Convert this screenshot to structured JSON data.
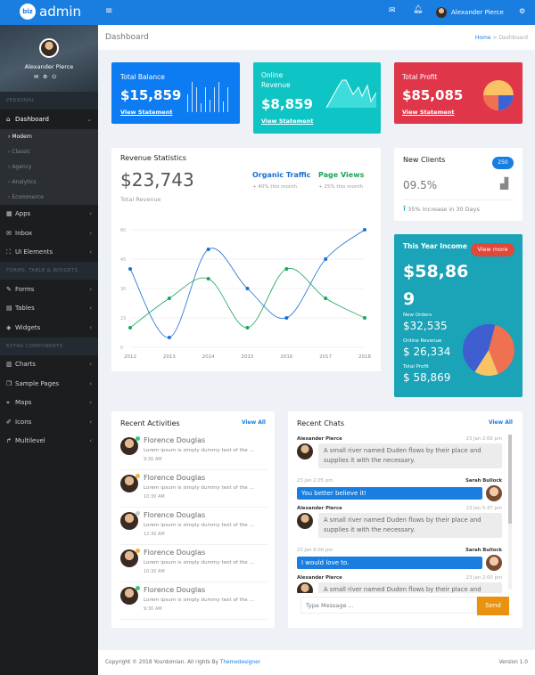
{
  "topbar": {
    "logo_badge": "biz",
    "logo_text": "admin",
    "menu_icon": "hamburger-icon",
    "user": "Alexander Pierce"
  },
  "sidebar": {
    "user": "Alexander Pierce",
    "sections": [
      "PERSONAL",
      "FORMS, TABLE & WIDGETS",
      "EXTRA COMPONENTS"
    ],
    "dashboard": "Dashboard",
    "sub": [
      "Modern",
      "Classic",
      "Agency",
      "Analytics",
      "Ecommerce"
    ],
    "items1": [
      "Apps",
      "Inbox",
      "UI Elements"
    ],
    "items2": [
      "Forms",
      "Tables",
      "Widgets"
    ],
    "items3": [
      "Charts",
      "Sample Pages",
      "Maps",
      "Icons",
      "Multilevel"
    ]
  },
  "page": {
    "title": "Dashboard",
    "crumb_home": "Home",
    "crumb_sep": ">",
    "crumb_current": "Dashboard"
  },
  "stats": [
    {
      "label": "Total Balance",
      "value": "$15,859",
      "link": "View Statement",
      "color": "#0d7cf2"
    },
    {
      "label": "Online Revenue",
      "value": "$8,859",
      "link": "View Statement",
      "color": "#0fc4c4"
    },
    {
      "label": "Total Profit",
      "value": "$85,085",
      "link": "View Statement",
      "color": "#e0364a"
    }
  ],
  "revenue": {
    "title": "Revenue Statistics",
    "total": "$23,743",
    "total_label": "Total Revenue",
    "legend": [
      {
        "name": "Organic Traffic",
        "note": "+ 40% this month",
        "color": "#1b6fd1"
      },
      {
        "name": "Page Views",
        "note": "+ 25% this month",
        "color": "#17a55a"
      }
    ]
  },
  "chart_data": {
    "type": "line",
    "categories": [
      "2012",
      "2013",
      "2014",
      "2015",
      "2016",
      "2017",
      "2018"
    ],
    "ylim": [
      0,
      60
    ],
    "yticks": [
      "0",
      "15",
      "30",
      "45",
      "60"
    ],
    "series": [
      {
        "name": "Organic Traffic",
        "values": [
          40,
          5,
          50,
          30,
          15,
          45,
          60
        ],
        "color": "#1b6fd1"
      },
      {
        "name": "Page Views",
        "values": [
          10,
          25,
          35,
          10,
          40,
          25,
          15
        ],
        "color": "#17a55a"
      }
    ],
    "grid": true,
    "smooth": true
  },
  "clients": {
    "title": "New Clients",
    "badge": "250",
    "percent": "09.5%",
    "note": "35% Increase in 30 Days"
  },
  "income": {
    "title": "This Year Income",
    "button": "View more",
    "value1": "$58,86",
    "value2": "9",
    "rows": [
      {
        "label": "New Orders",
        "value": "$32,535"
      },
      {
        "label": "Online Revenue",
        "value": "$ 26,334"
      },
      {
        "label": "Total Profit",
        "value": "$ 58,869"
      }
    ],
    "pie": [
      {
        "value": 40,
        "color": "#f07052"
      },
      {
        "value": 15,
        "color": "#f8c265"
      },
      {
        "value": 45,
        "color": "#3f5fd1"
      }
    ]
  },
  "activities": {
    "title": "Recent Activities",
    "view_all": "View All",
    "items": [
      {
        "name": "Florence Douglas",
        "text": "Lorem ipsum is simply dummy text of the ...",
        "time": "9:30 AM",
        "status": "#2ecc71"
      },
      {
        "name": "Florence Douglas",
        "text": "Lorem ipsum is simply dummy text of the ...",
        "time": "10:30 AM",
        "status": "#f5b32f"
      },
      {
        "name": "Florence Douglas",
        "text": "Lorem ipsum is simply dummy text of the ...",
        "time": "12:30 AM",
        "status": "#cccccc"
      },
      {
        "name": "Florence Douglas",
        "text": "Lorem ipsum is simply dummy text of the ...",
        "time": "10:30 AM",
        "status": "#f5b32f"
      },
      {
        "name": "Florence Douglas",
        "text": "Lorem ipsum is simply dummy text of the ...",
        "time": "9:30 AM",
        "status": "#2ecc71"
      }
    ]
  },
  "chats": {
    "title": "Recent Chats",
    "view_all": "View All",
    "placeholder": "Type Message ...",
    "send": "Send",
    "messages": [
      {
        "who": "Alexander Pierce",
        "when": "23 Jan 2:00 pm",
        "text": "A small river named Duden flows by their place and supplies it with the necessary.",
        "out": false
      },
      {
        "who": "Sarah Bullock",
        "when": "23 Jan 2:05 pm",
        "text": "You better believe it!",
        "out": true
      },
      {
        "who": "Alexander Pierce",
        "when": "23 Jan 5:37 pm",
        "text": "A small river named Duden flows by their place and supplies it with the necessary.",
        "out": false
      },
      {
        "who": "Sarah Bullock",
        "when": "23 Jan 6:00 pm",
        "text": "I would love to.",
        "out": true
      },
      {
        "who": "Alexander Pierce",
        "when": "23 Jan 2:00 pm",
        "text": "A small river named Duden flows by their place and",
        "out": false
      }
    ]
  },
  "footer": {
    "copyright": "Copyright © 2018 Yourdomian. All rights By",
    "author": "Themedesigner",
    "version": "Version 1.0"
  }
}
